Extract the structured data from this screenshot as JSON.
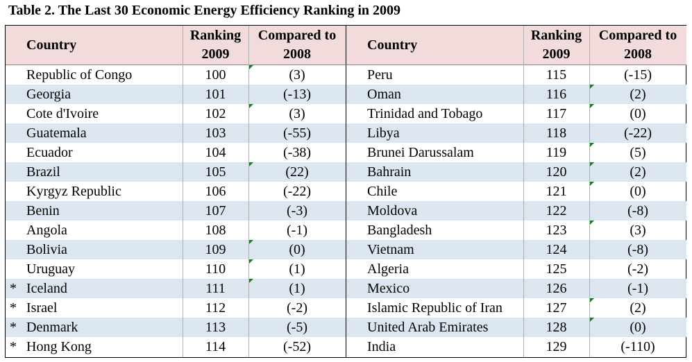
{
  "title": "Table 2. The Last 30 Economic Energy Efficiency Ranking in 2009",
  "headers": {
    "country": "Country",
    "ranking_line1": "Ranking",
    "ranking_line2": "2009",
    "compared_line1": "Compared to",
    "compared_line2": "2008"
  },
  "left_rows": [
    {
      "star": "",
      "country": "Republic of Congo",
      "rank": "100",
      "compared": "(3)",
      "mark": "compared"
    },
    {
      "star": "",
      "country": "Georgia",
      "rank": "101",
      "compared": "(-13)",
      "mark": ""
    },
    {
      "star": "",
      "country": "Cote d'Ivoire",
      "rank": "102",
      "compared": "(3)",
      "mark": "compared"
    },
    {
      "star": "",
      "country": "Guatemala",
      "rank": "103",
      "compared": "(-55)",
      "mark": ""
    },
    {
      "star": "",
      "country": "Ecuador",
      "rank": "104",
      "compared": "(-38)",
      "mark": ""
    },
    {
      "star": "",
      "country": "Brazil",
      "rank": "105",
      "compared": "(22)",
      "mark": "compared"
    },
    {
      "star": "",
      "country": "Kyrgyz Republic",
      "rank": "106",
      "compared": "(-22)",
      "mark": ""
    },
    {
      "star": "",
      "country": "Benin",
      "rank": "107",
      "compared": "(-3)",
      "mark": ""
    },
    {
      "star": "",
      "country": "Angola",
      "rank": "108",
      "compared": "(-1)",
      "mark": ""
    },
    {
      "star": "",
      "country": "Bolivia",
      "rank": "109",
      "compared": "(0)",
      "mark": "compared"
    },
    {
      "star": "",
      "country": "Uruguay",
      "rank": "110",
      "compared": "(1)",
      "mark": "compared"
    },
    {
      "star": "*",
      "country": "Iceland",
      "rank": "111",
      "compared": "(1)",
      "mark": "compared"
    },
    {
      "star": "*",
      "country": "Israel",
      "rank": "112",
      "compared": "(-2)",
      "mark": ""
    },
    {
      "star": "*",
      "country": "Denmark",
      "rank": "113",
      "compared": "(-5)",
      "mark": ""
    },
    {
      "star": "*",
      "country": "Hong Kong",
      "rank": "114",
      "compared": "(-52)",
      "mark": ""
    }
  ],
  "right_rows": [
    {
      "star": "",
      "country": "Peru",
      "rank": "115",
      "compared": "(-15)",
      "mark": ""
    },
    {
      "star": "",
      "country": "Oman",
      "rank": "116",
      "compared": "(2)",
      "mark": "compared"
    },
    {
      "star": "",
      "country": "Trinidad and Tobago",
      "rank": "117",
      "compared": "(0)",
      "mark": "compared"
    },
    {
      "star": "",
      "country": "Libya",
      "rank": "118",
      "compared": "(-22)",
      "mark": ""
    },
    {
      "star": "",
      "country": "Brunei Darussalam",
      "rank": "119",
      "compared": "(5)",
      "mark": "compared"
    },
    {
      "star": "",
      "country": "Bahrain",
      "rank": "120",
      "compared": "(2)",
      "mark": "compared"
    },
    {
      "star": "",
      "country": "Chile",
      "rank": "121",
      "compared": "(0)",
      "mark": "compared"
    },
    {
      "star": "",
      "country": "Moldova",
      "rank": "122",
      "compared": "(-8)",
      "mark": ""
    },
    {
      "star": "",
      "country": "Bangladesh",
      "rank": "123",
      "compared": "(3)",
      "mark": "compared"
    },
    {
      "star": "",
      "country": "Vietnam",
      "rank": "124",
      "compared": "(-8)",
      "mark": ""
    },
    {
      "star": "",
      "country": "Algeria",
      "rank": "125",
      "compared": "(-2)",
      "mark": ""
    },
    {
      "star": "",
      "country": "Mexico",
      "rank": "126",
      "compared": "(-1)",
      "mark": ""
    },
    {
      "star": "",
      "country": "Islamic Republic of Iran",
      "rank": "127",
      "compared": "(2)",
      "mark": "compared"
    },
    {
      "star": "",
      "country": "United Arab Emirates",
      "rank": "128",
      "compared": "(0)",
      "mark": "compared"
    },
    {
      "star": "",
      "country": "India",
      "rank": "129",
      "compared": "(-110)",
      "mark": ""
    }
  ],
  "colors": {
    "header_bg": "#f2dcdb",
    "alt_row_bg": "#dce6f1",
    "marker": "#1a7f1a"
  }
}
